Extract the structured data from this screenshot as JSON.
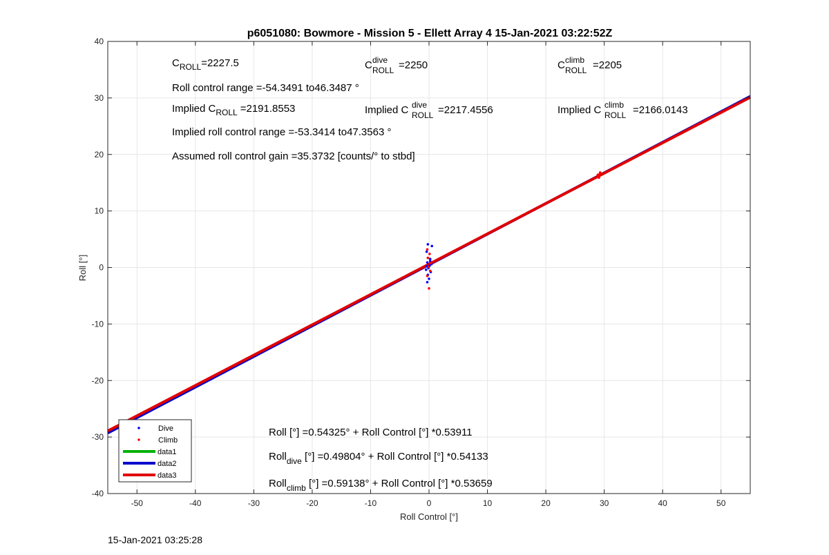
{
  "chart_data": {
    "type": "scatter",
    "title": "p6051080: Bowmore - Mission 5 - Ellett Array 4 15-Jan-2021 03:22:52Z",
    "xlabel": "Roll Control [°]",
    "ylabel": "Roll [°]",
    "xlim": [
      -55,
      55
    ],
    "ylim": [
      -40,
      40
    ],
    "xticks": [
      -50,
      -40,
      -30,
      -20,
      -10,
      0,
      10,
      20,
      30,
      40,
      50
    ],
    "yticks": [
      -40,
      -30,
      -20,
      -10,
      0,
      10,
      20,
      30,
      40
    ],
    "grid": true,
    "legend_position": "bottom-left",
    "series": [
      {
        "name": "Dive",
        "kind": "scatter",
        "color": "#0000ff",
        "points": [
          [
            -0.2,
            4.1
          ],
          [
            -0.4,
            2.8
          ],
          [
            0.2,
            1.5
          ],
          [
            -0.3,
            0.9
          ],
          [
            0.1,
            0.3
          ],
          [
            -0.5,
            -0.4
          ],
          [
            0.3,
            -0.8
          ],
          [
            -0.2,
            -1.3
          ],
          [
            0.0,
            -2.0
          ],
          [
            -0.3,
            -2.6
          ],
          [
            0.4,
            0.6
          ],
          [
            -0.1,
            -0.1
          ],
          [
            0.2,
            1.1
          ],
          [
            -0.4,
            0.2
          ],
          [
            0.5,
            3.8
          ]
        ]
      },
      {
        "name": "Climb",
        "kind": "scatter",
        "color": "#ff0000",
        "points": [
          [
            -0.3,
            3.2
          ],
          [
            0.1,
            2.4
          ],
          [
            -0.2,
            1.7
          ],
          [
            0.3,
            0.8
          ],
          [
            -0.1,
            0.1
          ],
          [
            0.2,
            -0.6
          ],
          [
            -0.3,
            -1.5
          ],
          [
            0.0,
            -3.7
          ],
          [
            29.0,
            16.2
          ],
          [
            29.3,
            16.8
          ],
          [
            29.1,
            15.9
          ],
          [
            28.9,
            16.4
          ],
          [
            29.2,
            16.5
          ]
        ]
      },
      {
        "name": "data1",
        "kind": "line",
        "color": "#00b000",
        "intercept": 0.54325,
        "slope": 0.53911
      },
      {
        "name": "data2",
        "kind": "line",
        "color": "#0000cc",
        "intercept": 0.49804,
        "slope": 0.54133
      },
      {
        "name": "data3",
        "kind": "line",
        "color": "#e00000",
        "intercept": 0.59138,
        "slope": 0.53659
      }
    ],
    "annotations": {
      "c_roll": {
        "base": "C",
        "sub": "ROLL",
        "value": "=2227.5"
      },
      "c_dive": {
        "base": "C",
        "sub": "ROLL",
        "sup": "dive",
        "value": "=2250"
      },
      "c_climb": {
        "base": "C",
        "sub": "ROLL",
        "sup": "climb",
        "value": "=2205"
      },
      "roll_range": "Roll control range =-54.3491 to46.3487 °",
      "implied_c_roll": {
        "prefix": "Implied C",
        "sub": "ROLL",
        "value": "=2191.8553"
      },
      "implied_c_dive": {
        "prefix": "Implied C",
        "sub": "ROLL",
        "sup": "dive",
        "value": "=2217.4556"
      },
      "implied_c_climb": {
        "prefix": "Implied C",
        "sub": "ROLL",
        "sup": "climb",
        "value": "=2166.0143"
      },
      "implied_range": "Implied roll control range =-53.3414 to47.3563 °",
      "gain": "Assumed roll control gain =35.3732 [counts/° to stbd]",
      "fit_all": "Roll [°] =0.54325° + Roll Control [°] *0.53911",
      "fit_dive": {
        "base": "Roll",
        "sub": "dive",
        "rest": " [°] =0.49804° + Roll Control [°] *0.54133"
      },
      "fit_climb": {
        "base": "Roll",
        "sub": "climb",
        "rest": " [°] =0.59138° + Roll Control [°] *0.53659"
      }
    }
  },
  "timestamp": "15-Jan-2021 03:25:28"
}
